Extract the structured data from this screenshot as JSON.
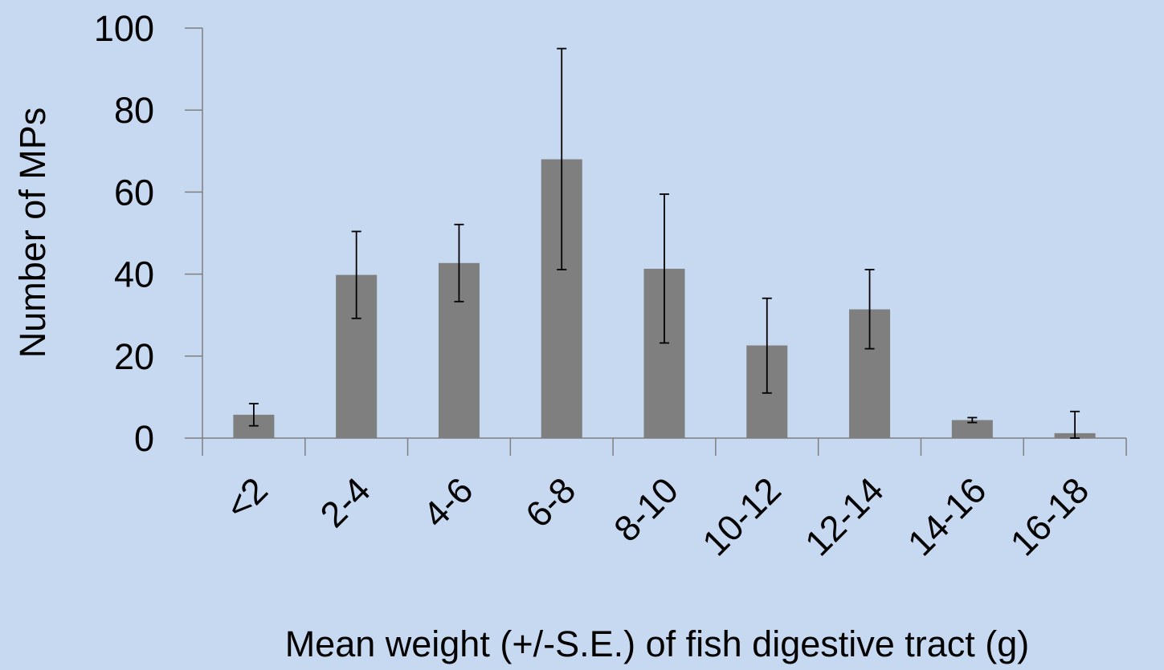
{
  "chart_data": {
    "type": "bar",
    "title": "",
    "xlabel": "Mean weight (+/-S.E.) of fish digestive tract (g)",
    "ylabel": "Number of MPs",
    "categories": [
      "<2",
      "2-4",
      "4-6",
      "6-8",
      "8-10",
      "10-12",
      "12-14",
      "14-16",
      "16-18"
    ],
    "values": [
      5.7,
      39.8,
      42.7,
      68.0,
      41.3,
      22.6,
      31.4,
      4.4,
      1.2
    ],
    "error_low": [
      2.7,
      10.6,
      9.4,
      26.9,
      18.1,
      11.6,
      9.6,
      0.6,
      1.2
    ],
    "error_high": [
      2.7,
      10.6,
      9.4,
      27.0,
      18.2,
      11.5,
      9.7,
      0.6,
      5.3
    ],
    "ylim": [
      0,
      100
    ],
    "yticks": [
      0,
      20,
      40,
      60,
      80,
      100
    ],
    "grid": false,
    "legend": "none",
    "colors": {
      "background": "#c6d9f1",
      "bar": "#7f7f7f",
      "axis": "#7f7f7f",
      "error": "#000000",
      "text": "#000000"
    }
  }
}
